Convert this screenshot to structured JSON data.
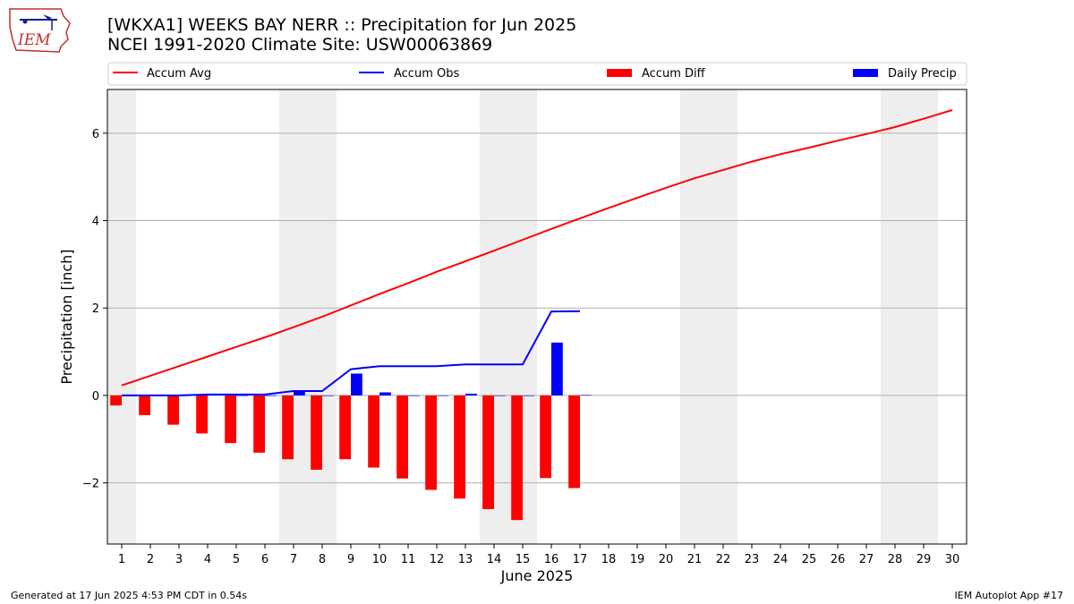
{
  "title_line1": "[WKXA1] WEEKS BAY NERR :: Precipitation for Jun 2025",
  "title_line2": "NCEI 1991-2020 Climate Site: USW00063869",
  "footer_left": "Generated at 17 Jun 2025 4:53 PM CDT in 0.54s",
  "footer_right": "IEM Autoplot App #17",
  "logo_text": "IEM",
  "colors": {
    "accum_avg": "#ff0000",
    "accum_obs": "#0000ff",
    "accum_diff": "#ff0000",
    "daily_precip": "#0000ff",
    "weekend_shade": "#eeeeee",
    "grid": "#b0b0b0"
  },
  "chart_data": {
    "type": "bar",
    "xlabel": "June 2025",
    "ylabel": "Precipitation [inch]",
    "xlim": [
      0.5,
      30.5
    ],
    "ylim": [
      -3.4,
      7.0
    ],
    "yticks": [
      -2,
      0,
      2,
      4,
      6
    ],
    "ytick_labels": [
      "−2",
      "0",
      "2",
      "4",
      "6"
    ],
    "days": [
      1,
      2,
      3,
      4,
      5,
      6,
      7,
      8,
      9,
      10,
      11,
      12,
      13,
      14,
      15,
      16,
      17,
      18,
      19,
      20,
      21,
      22,
      23,
      24,
      25,
      26,
      27,
      28,
      29,
      30
    ],
    "weekend_days": [
      1,
      7,
      8,
      14,
      15,
      21,
      22,
      28,
      29
    ],
    "grid": "horizontal",
    "legend_position": "top",
    "series": [
      {
        "name": "Accum Avg",
        "kind": "line",
        "values": [
          0.23,
          0.45,
          0.67,
          0.89,
          1.11,
          1.33,
          1.56,
          1.8,
          2.06,
          2.32,
          2.57,
          2.83,
          3.07,
          3.31,
          3.56,
          3.81,
          4.05,
          4.29,
          4.52,
          4.75,
          4.97,
          5.16,
          5.35,
          5.52,
          5.67,
          5.83,
          5.98,
          6.14,
          6.33,
          6.53
        ]
      },
      {
        "name": "Accum Obs",
        "kind": "line",
        "values": [
          0.0,
          0.0,
          0.0,
          0.02,
          0.02,
          0.02,
          0.1,
          0.1,
          0.6,
          0.67,
          0.67,
          0.67,
          0.71,
          0.71,
          0.71,
          1.92,
          1.93
        ]
      },
      {
        "name": "Accum Diff",
        "kind": "bar",
        "values": [
          -0.23,
          -0.45,
          -0.67,
          -0.87,
          -1.09,
          -1.31,
          -1.46,
          -1.7,
          -1.46,
          -1.65,
          -1.9,
          -2.16,
          -2.36,
          -2.6,
          -2.85,
          -1.89,
          -2.12
        ]
      },
      {
        "name": "Daily Precip",
        "kind": "bar",
        "values": [
          0.0,
          0.0,
          0.0,
          0.02,
          0.0,
          0.0,
          0.08,
          0.0,
          0.5,
          0.07,
          0.0,
          0.0,
          0.04,
          0.0,
          0.0,
          1.21,
          0.01
        ]
      }
    ]
  }
}
